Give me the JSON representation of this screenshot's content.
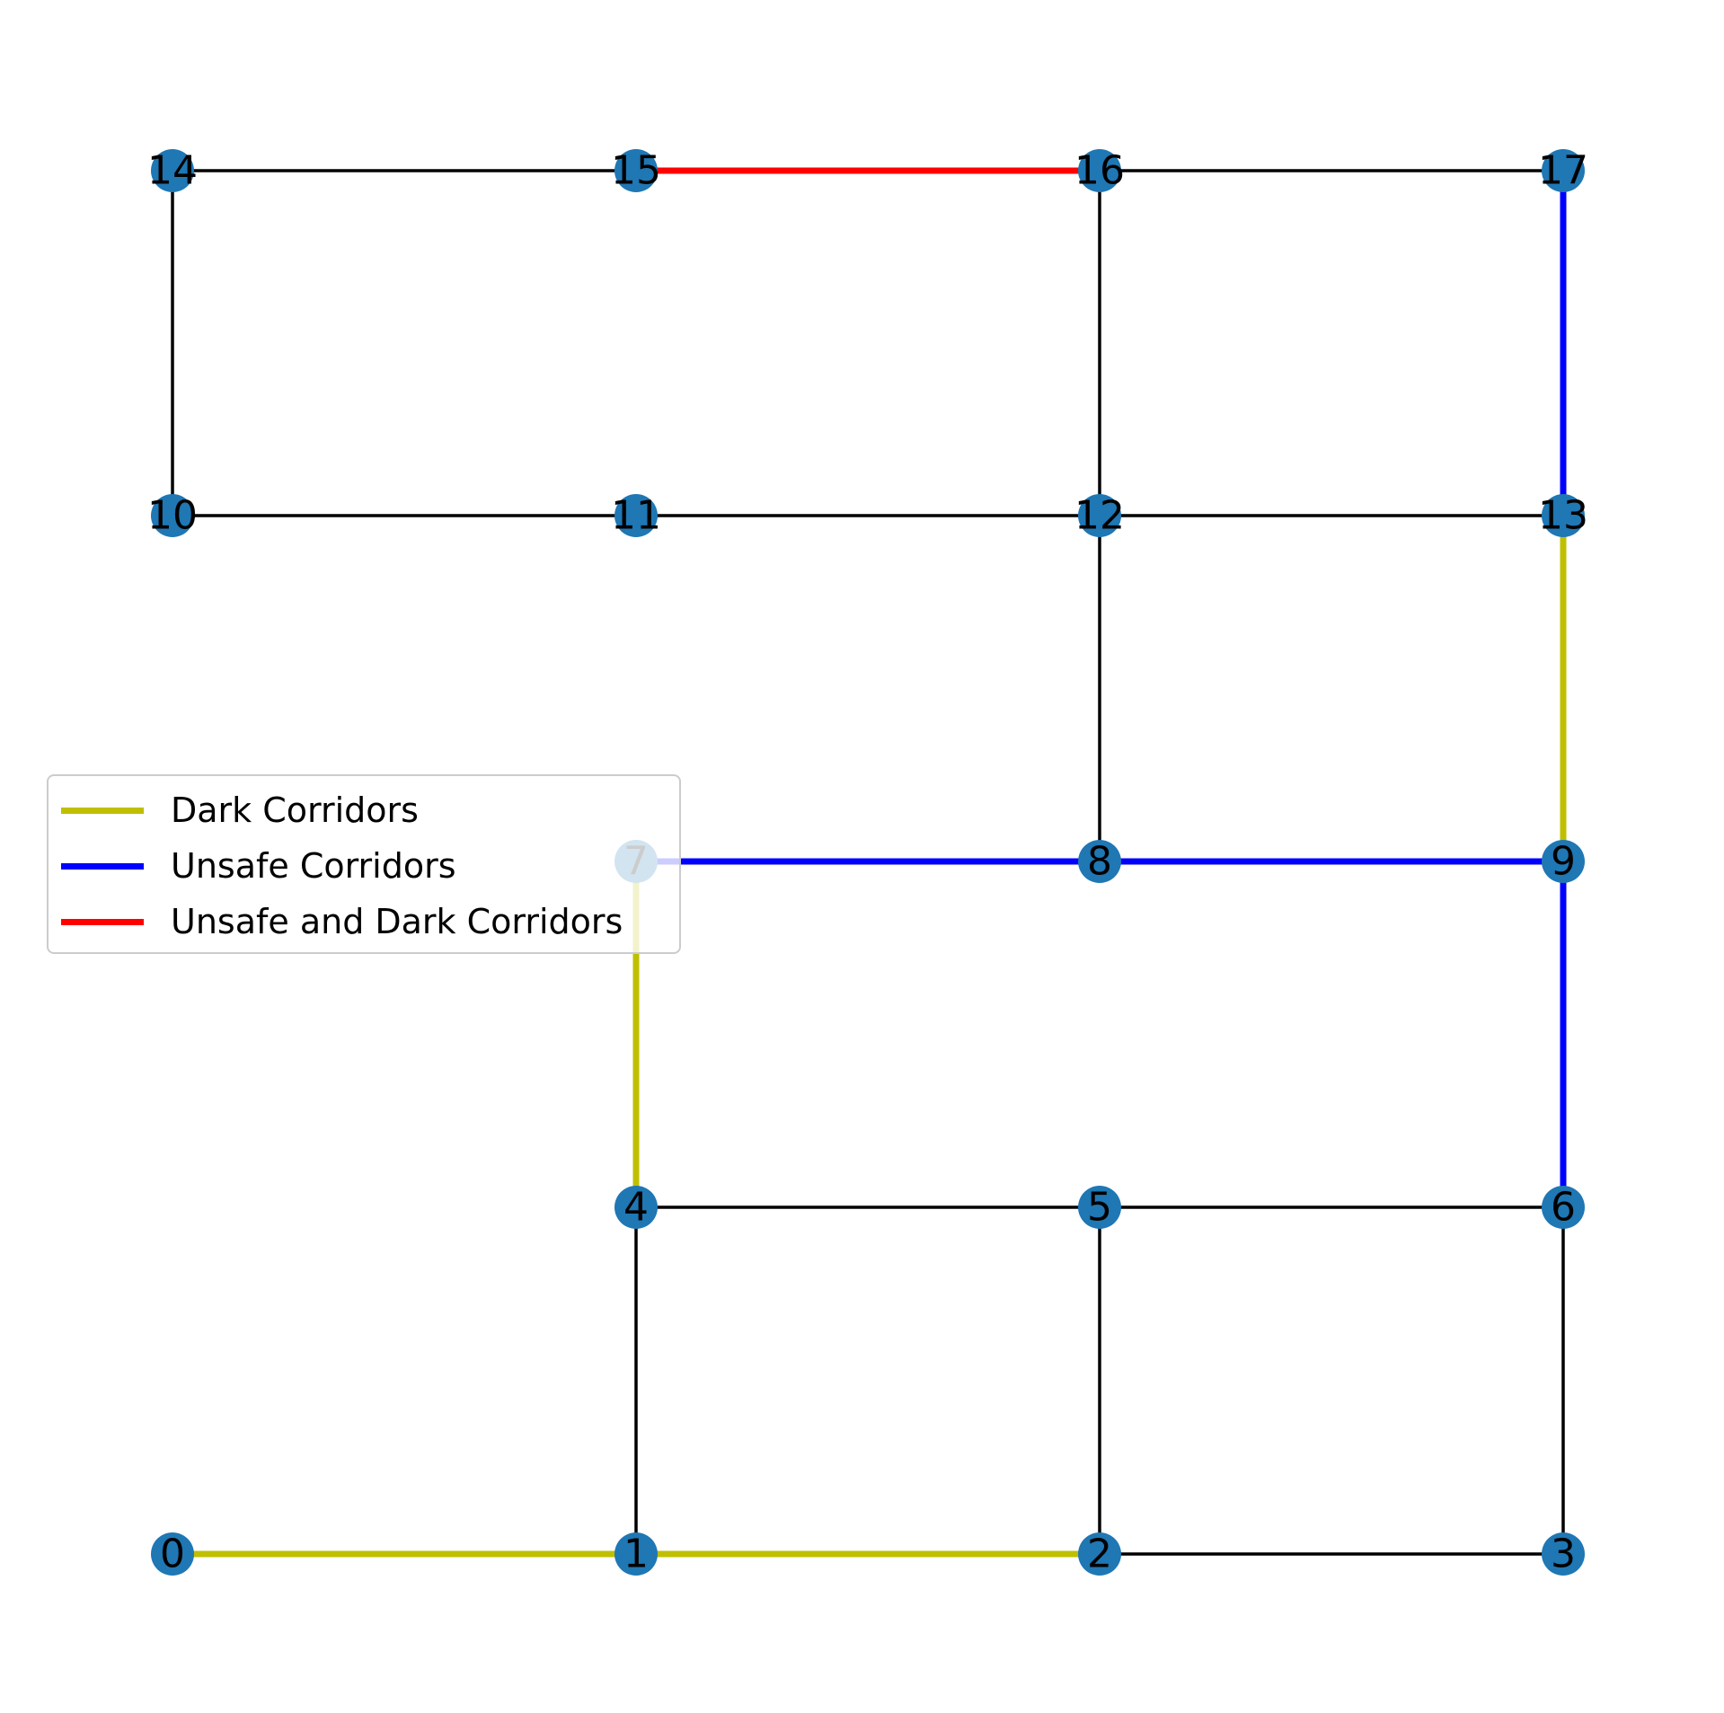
{
  "colors": {
    "plain_edge": "#000000",
    "dark": "#bfbf00",
    "unsafe": "#0000ff",
    "unsafe_dark": "#ff0000",
    "node_fill": "#1f77b4",
    "background": "#ffffff"
  },
  "legend": {
    "placement": "center-left",
    "entries": [
      {
        "label": "Dark Corridors",
        "kind": "dark"
      },
      {
        "label": "Unsafe Corridors",
        "kind": "unsafe"
      },
      {
        "label": "Unsafe and Dark Corridors",
        "kind": "unsafe_dark"
      }
    ]
  },
  "nodes": [
    {
      "id": "0",
      "label": "0"
    },
    {
      "id": "1",
      "label": "1"
    },
    {
      "id": "2",
      "label": "2"
    },
    {
      "id": "3",
      "label": "3"
    },
    {
      "id": "4",
      "label": "4"
    },
    {
      "id": "5",
      "label": "5"
    },
    {
      "id": "6",
      "label": "6"
    },
    {
      "id": "7",
      "label": "7"
    },
    {
      "id": "8",
      "label": "8"
    },
    {
      "id": "9",
      "label": "9"
    },
    {
      "id": "10",
      "label": "10"
    },
    {
      "id": "11",
      "label": "11"
    },
    {
      "id": "12",
      "label": "12"
    },
    {
      "id": "13",
      "label": "13"
    },
    {
      "id": "14",
      "label": "14"
    },
    {
      "id": "15",
      "label": "15"
    },
    {
      "id": "16",
      "label": "16"
    },
    {
      "id": "17",
      "label": "17"
    }
  ],
  "edges": [
    {
      "from": "0",
      "to": "1",
      "kind": "dark"
    },
    {
      "from": "1",
      "to": "2",
      "kind": "dark"
    },
    {
      "from": "2",
      "to": "3",
      "kind": "plain"
    },
    {
      "from": "1",
      "to": "4",
      "kind": "plain"
    },
    {
      "from": "2",
      "to": "5",
      "kind": "plain"
    },
    {
      "from": "3",
      "to": "6",
      "kind": "plain"
    },
    {
      "from": "4",
      "to": "5",
      "kind": "plain"
    },
    {
      "from": "5",
      "to": "6",
      "kind": "plain"
    },
    {
      "from": "4",
      "to": "7",
      "kind": "dark"
    },
    {
      "from": "6",
      "to": "9",
      "kind": "unsafe"
    },
    {
      "from": "7",
      "to": "8",
      "kind": "unsafe"
    },
    {
      "from": "8",
      "to": "9",
      "kind": "unsafe"
    },
    {
      "from": "8",
      "to": "12",
      "kind": "plain"
    },
    {
      "from": "9",
      "to": "13",
      "kind": "dark"
    },
    {
      "from": "10",
      "to": "11",
      "kind": "plain"
    },
    {
      "from": "11",
      "to": "12",
      "kind": "plain"
    },
    {
      "from": "12",
      "to": "13",
      "kind": "plain"
    },
    {
      "from": "10",
      "to": "14",
      "kind": "plain"
    },
    {
      "from": "12",
      "to": "16",
      "kind": "plain"
    },
    {
      "from": "13",
      "to": "17",
      "kind": "unsafe"
    },
    {
      "from": "14",
      "to": "15",
      "kind": "plain"
    },
    {
      "from": "15",
      "to": "16",
      "kind": "unsafe_dark"
    },
    {
      "from": "16",
      "to": "17",
      "kind": "plain"
    }
  ]
}
